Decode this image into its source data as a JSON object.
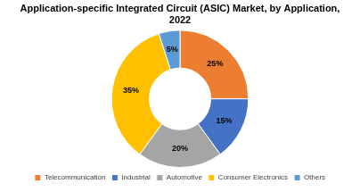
{
  "chart_data": {
    "type": "doughnut",
    "title": [
      "Application-specific Integrated Circuit (ASIC) Market, by Application,",
      "2022"
    ],
    "categories": [
      "Telecommunication",
      "Industrial",
      "Automotive",
      "Consumer Electronics",
      "Others"
    ],
    "values": [
      25,
      15,
      20,
      35,
      5
    ],
    "value_labels": [
      "25%",
      "15%",
      "20%",
      "35%",
      "5%"
    ],
    "colors": [
      "#ed7d31",
      "#4472c4",
      "#a5a5a5",
      "#ffc000",
      "#5b9bd5"
    ],
    "data_labels": true,
    "legend": "bottom"
  }
}
